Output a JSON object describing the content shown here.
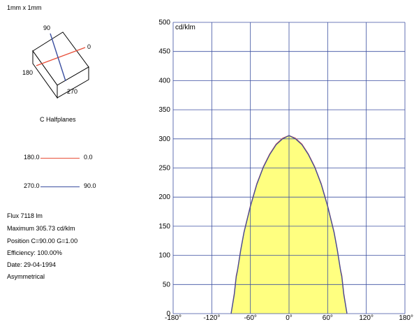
{
  "sample_size": "1mm x 1mm",
  "cube_labels": {
    "top": "90",
    "right": "0",
    "left": "180",
    "bottom": "270"
  },
  "halfplanes_title": "C Halfplanes",
  "legend": [
    {
      "left": "180.0",
      "right": "0.0",
      "color": "#e8503a"
    },
    {
      "left": "270.0",
      "right": "90.0",
      "color": "#3b4fa0"
    }
  ],
  "info": {
    "flux": "Flux 7118  lm",
    "maximum": "Maximum 305.73  cd/klm",
    "position": "Position C=90.00 G=1.00",
    "efficiency": "Efficiency: 100.00%",
    "date": "Date: 29-04-1994",
    "symmetry": "Asymmetrical"
  },
  "chart_data": {
    "type": "area",
    "y_unit": "cd/klm",
    "xlim": [
      -180,
      180
    ],
    "ylim": [
      0,
      500
    ],
    "x_ticks": [
      -180,
      -120,
      -60,
      0,
      60,
      120,
      180
    ],
    "x_tick_labels": [
      "-180°",
      "-120°",
      "-60°",
      "0°",
      "60°",
      "120°",
      "180°"
    ],
    "y_ticks": [
      0,
      50,
      100,
      150,
      200,
      250,
      300,
      350,
      400,
      450,
      500
    ],
    "y_tick_labels": [
      "0",
      "50",
      "100",
      "150",
      "200",
      "250",
      "300",
      "350",
      "400",
      "450",
      "500"
    ],
    "grid": true,
    "fill_color": "#ffff80",
    "series": [
      {
        "color": "#e8503a",
        "x": [
          -90,
          -85,
          -82,
          -80,
          -75,
          -70,
          -60,
          -50,
          -40,
          -30,
          -20,
          -10,
          0,
          10,
          20,
          30,
          40,
          50,
          60,
          70,
          75,
          80,
          82,
          85,
          90
        ],
        "y": [
          0,
          35,
          65,
          75,
          110,
          140,
          185,
          223,
          252,
          274,
          291,
          301,
          305.7,
          301,
          291,
          274,
          252,
          223,
          185,
          140,
          110,
          75,
          65,
          35,
          0
        ]
      },
      {
        "color": "#3b4fa0",
        "x": [
          -90,
          -85,
          -82,
          -80,
          -75,
          -70,
          -60,
          -50,
          -40,
          -30,
          -20,
          -10,
          0,
          10,
          20,
          30,
          40,
          50,
          60,
          70,
          75,
          80,
          82,
          85,
          90
        ],
        "y": [
          0,
          33,
          63,
          74,
          109,
          139,
          184,
          222,
          251,
          273,
          290,
          300,
          305.7,
          300,
          290,
          273,
          251,
          222,
          184,
          139,
          109,
          74,
          63,
          33,
          0
        ]
      }
    ]
  }
}
